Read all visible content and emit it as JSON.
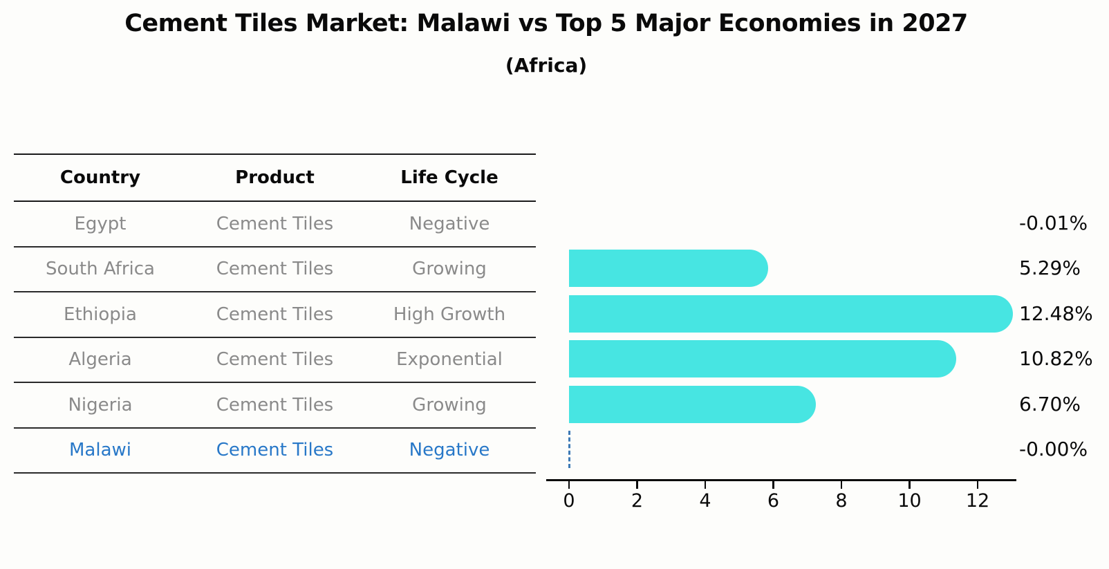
{
  "title": "Cement Tiles Market: Malawi vs Top 5 Major Economies in 2027",
  "subtitle": "(Africa)",
  "table": {
    "headers": [
      "Country",
      "Product",
      "Life Cycle"
    ],
    "rows": [
      {
        "country": "Egypt",
        "product": "Cement Tiles",
        "life_cycle": "Negative",
        "highlight": false
      },
      {
        "country": "South Africa",
        "product": "Cement Tiles",
        "life_cycle": "Growing",
        "highlight": false
      },
      {
        "country": "Ethiopia",
        "product": "Cement Tiles",
        "life_cycle": "High Growth",
        "highlight": false
      },
      {
        "country": "Algeria",
        "product": "Cement Tiles",
        "life_cycle": "Exponential",
        "highlight": false
      },
      {
        "country": "Nigeria",
        "product": "Cement Tiles",
        "life_cycle": "Growing",
        "highlight": true
      }
    ],
    "highlight_row": {
      "country": "Malawi",
      "product": "Cement Tiles",
      "life_cycle": "Negative"
    }
  },
  "chart_data": {
    "type": "bar",
    "orientation": "horizontal",
    "categories": [
      "Egypt",
      "South Africa",
      "Ethiopia",
      "Algeria",
      "Nigeria",
      "Malawi"
    ],
    "values": [
      -0.01,
      5.29,
      12.48,
      10.82,
      6.7,
      -0.0
    ],
    "value_labels": [
      "-0.01%",
      "5.29%",
      "12.48%",
      "10.82%",
      "6.70%",
      "-0.00%"
    ],
    "xticks": [
      0,
      2,
      4,
      6,
      8,
      10,
      12
    ],
    "xlim": [
      0,
      13.2
    ],
    "legend": "none",
    "grid": "off",
    "bar_color": "#47E5E2",
    "highlight_color": "#2878C8",
    "zero_marker_color": "#3D7AB5",
    "zero_marker_index": 5,
    "title": "Cement Tiles Market: Malawi vs Top 5 Major Economies in 2027",
    "subtitle": "(Africa)"
  }
}
